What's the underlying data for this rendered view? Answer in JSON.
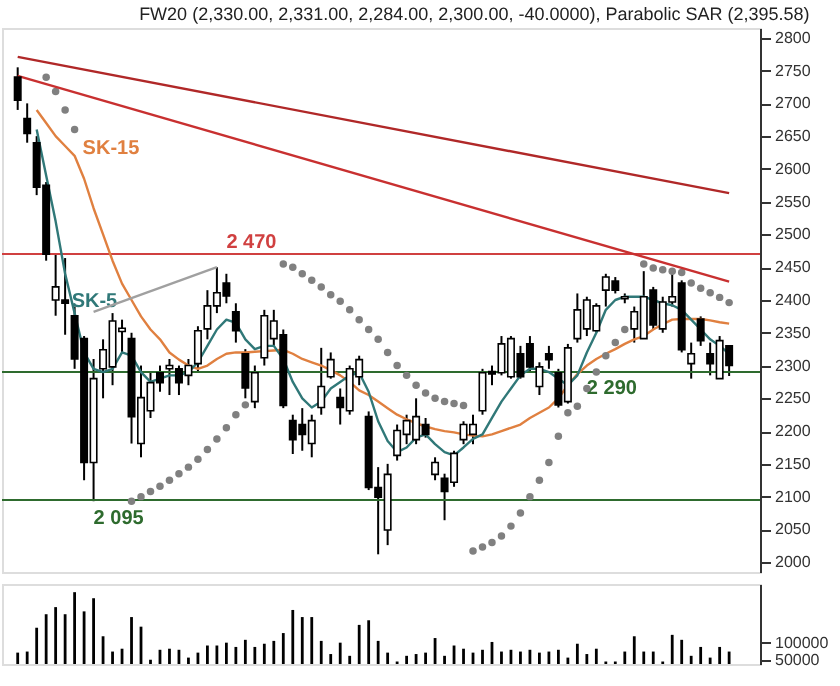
{
  "chart_data": [
    {
      "type": "candlestick",
      "title": "FW20 (2,330.00, 2,331.00, 2,284.00, 2,300.00, -40.0000), Parabolic SAR (2,395.58)",
      "categories": [
        null,
        null,
        null,
        null,
        null,
        null,
        null,
        null,
        null,
        null,
        null,
        null,
        null,
        null,
        null,
        null,
        null,
        null,
        null,
        null,
        null,
        null,
        null,
        null,
        null,
        null,
        null,
        null,
        null,
        null,
        null,
        null,
        null,
        null,
        null,
        null,
        null,
        null,
        null,
        null,
        null,
        null,
        null,
        null,
        null,
        null,
        null,
        null,
        null,
        null,
        null,
        null,
        null,
        null,
        null,
        null,
        null,
        null,
        null,
        null,
        null,
        null,
        null,
        null,
        null,
        null,
        null,
        null,
        null,
        null,
        null,
        null,
        null,
        null,
        null,
        null
      ],
      "ohlc": [
        [
          2740,
          2755,
          2690,
          2705
        ],
        [
          2677,
          2700,
          2640,
          2654
        ],
        [
          2640,
          2650,
          2560,
          2572
        ],
        [
          2575,
          2580,
          2460,
          2470
        ],
        [
          2400,
          2470,
          2376,
          2420
        ],
        [
          2400,
          2464,
          2347,
          2395
        ],
        [
          2376,
          2390,
          2295,
          2310
        ],
        [
          2341,
          2345,
          2125,
          2152
        ],
        [
          2152,
          2310,
          2093,
          2280
        ],
        [
          2295,
          2340,
          2250,
          2324
        ],
        [
          2298,
          2380,
          2270,
          2368
        ],
        [
          2352,
          2370,
          2320,
          2357
        ],
        [
          2341,
          2350,
          2181,
          2222
        ],
        [
          2181,
          2300,
          2160,
          2251
        ],
        [
          2231,
          2290,
          2220,
          2274
        ],
        [
          2289,
          2300,
          2260,
          2274
        ],
        [
          2295,
          2310,
          2255,
          2300
        ],
        [
          2295,
          2300,
          2255,
          2274
        ],
        [
          2285,
          2310,
          2270,
          2300
        ],
        [
          2303,
          2360,
          2290,
          2353
        ],
        [
          2356,
          2415,
          2340,
          2391
        ],
        [
          2391,
          2450,
          2380,
          2411
        ],
        [
          2426,
          2440,
          2395,
          2406
        ],
        [
          2382,
          2395,
          2335,
          2353
        ],
        [
          2318,
          2325,
          2250,
          2266
        ],
        [
          2245,
          2300,
          2235,
          2289
        ],
        [
          2312,
          2385,
          2300,
          2376
        ],
        [
          2341,
          2385,
          2330,
          2368
        ],
        [
          2347,
          2355,
          2235,
          2239
        ],
        [
          2216,
          2225,
          2165,
          2187
        ],
        [
          2210,
          2235,
          2170,
          2195
        ],
        [
          2181,
          2225,
          2160,
          2216
        ],
        [
          2236,
          2327,
          2225,
          2268
        ],
        [
          2283,
          2320,
          2280,
          2309
        ],
        [
          2251,
          2265,
          2210,
          2236
        ],
        [
          2231,
          2300,
          2225,
          2295
        ],
        [
          2283,
          2315,
          2270,
          2309
        ],
        [
          2222,
          2230,
          2110,
          2114
        ],
        [
          2114,
          2145,
          2012,
          2099
        ],
        [
          2049,
          2150,
          2026,
          2134
        ],
        [
          2163,
          2210,
          2155,
          2201
        ],
        [
          2195,
          2225,
          2180,
          2216
        ],
        [
          2187,
          2250,
          2180,
          2222
        ],
        [
          2210,
          2220,
          2190,
          2195
        ],
        [
          2134,
          2160,
          2125,
          2152
        ],
        [
          2128,
          2135,
          2064,
          2108
        ],
        [
          2122,
          2170,
          2115,
          2166
        ],
        [
          2187,
          2215,
          2180,
          2210
        ],
        [
          2195,
          2225,
          2180,
          2210
        ],
        [
          2231,
          2295,
          2225,
          2289
        ],
        [
          2291,
          2300,
          2270,
          2287
        ],
        [
          2289,
          2345,
          2285,
          2333
        ],
        [
          2283,
          2345,
          2280,
          2341
        ],
        [
          2318,
          2330,
          2280,
          2283
        ],
        [
          2333,
          2345,
          2290,
          2298
        ],
        [
          2268,
          2305,
          2255,
          2298
        ],
        [
          2318,
          2330,
          2295,
          2309
        ],
        [
          2289,
          2295,
          2236,
          2240
        ],
        [
          2245,
          2333,
          2242,
          2327
        ],
        [
          2341,
          2410,
          2335,
          2385
        ],
        [
          2356,
          2405,
          2345,
          2400
        ],
        [
          2353,
          2395,
          2350,
          2391
        ],
        [
          2415,
          2440,
          2390,
          2435
        ],
        [
          2429,
          2435,
          2410,
          2415
        ],
        [
          2402,
          2410,
          2395,
          2405
        ],
        [
          2356,
          2390,
          2335,
          2382
        ],
        [
          2341,
          2444,
          2341,
          2405
        ],
        [
          2415,
          2420,
          2355,
          2362
        ],
        [
          2356,
          2405,
          2350,
          2397
        ],
        [
          2397,
          2440,
          2390,
          2405
        ],
        [
          2426,
          2430,
          2320,
          2324
        ],
        [
          2303,
          2335,
          2280,
          2318
        ],
        [
          2371,
          2375,
          2330,
          2338
        ],
        [
          2318,
          2335,
          2285,
          2303
        ],
        [
          2280,
          2345,
          2280,
          2338
        ],
        [
          2330,
          2331,
          2284,
          2300
        ]
      ],
      "series": [
        {
          "name": "SK-15",
          "type": "line",
          "color": "#e08040",
          "values": [
            null,
            null,
            2690,
            2670,
            2650,
            2635,
            2620,
            2585,
            2540,
            2500,
            2460,
            2425,
            2400,
            2375,
            2355,
            2340,
            2320,
            2309,
            2300,
            2295,
            2300,
            2310,
            2318,
            2320,
            2320,
            2321,
            2322,
            2323,
            2324,
            2318,
            2310,
            2305,
            2300,
            2293,
            2285,
            2275,
            2262,
            2255,
            2245,
            2235,
            2225,
            2218,
            2212,
            2207,
            2203,
            2200,
            2198,
            2195,
            2193,
            2192,
            2195,
            2200,
            2205,
            2210,
            2220,
            2228,
            2236,
            2250,
            2270,
            2287,
            2300,
            2310,
            2318,
            2325,
            2333,
            2340,
            2345,
            2355,
            2363,
            2370,
            2371,
            2371,
            2371,
            2369,
            2366,
            2364
          ]
        },
        {
          "name": "SK-5",
          "type": "line",
          "color": "#307878",
          "values": [
            null,
            null,
            2660,
            2590,
            2520,
            2440,
            2380,
            2320,
            2295,
            2290,
            2295,
            2320,
            2315,
            2290,
            2275,
            2280,
            2285,
            2285,
            2290,
            2305,
            2330,
            2355,
            2370,
            2365,
            2340,
            2325,
            2330,
            2330,
            2310,
            2275,
            2250,
            2236,
            2245,
            2265,
            2275,
            2285,
            2289,
            2260,
            2215,
            2185,
            2168,
            2175,
            2190,
            2195,
            2180,
            2168,
            2163,
            2175,
            2188,
            2195,
            2220,
            2245,
            2265,
            2285,
            2295,
            2295,
            2290,
            2280,
            2270,
            2285,
            2320,
            2350,
            2385,
            2400,
            2405,
            2405,
            2405,
            2400,
            2395,
            2392,
            2385,
            2370,
            2355,
            2340,
            2330,
            2318
          ]
        },
        {
          "type": "scatter",
          "color": "#808080",
          "values": [
            null,
            null,
            null,
            2740,
            2718,
            2690,
            2660,
            null,
            null,
            null,
            null,
            null,
            2093,
            2100,
            2108,
            2116,
            2125,
            2135,
            2145,
            2157,
            2172,
            2188,
            2205,
            2225,
            2240,
            null,
            null,
            null,
            2455,
            2450,
            2440,
            2430,
            2420,
            2408,
            2398,
            2385,
            2370,
            2355,
            2340,
            2320,
            2300,
            2285,
            2270,
            2258,
            2250,
            2245,
            2242,
            2239,
            2017,
            2023,
            2030,
            2040,
            2055,
            2075,
            2100,
            2125,
            2152,
            2192,
            2228,
            2238,
            2265,
            2290,
            2315,
            2335,
            2355,
            2370,
            2455,
            2449,
            2446,
            2444,
            2442,
            2426,
            2418,
            2411,
            2404,
            2396
          ]
        },
        {
          "type": "line",
          "color": "#b02828",
          "values": [
            2771,
            null,
            null,
            null,
            null,
            null,
            null,
            null,
            null,
            null,
            null,
            null,
            null,
            null,
            null,
            null,
            null,
            null,
            null,
            null,
            null,
            null,
            null,
            null,
            null,
            null,
            null,
            null,
            null,
            null,
            null,
            null,
            null,
            null,
            null,
            null,
            null,
            null,
            null,
            null,
            null,
            null,
            null,
            null,
            null,
            null,
            null,
            null,
            null,
            null,
            null,
            null,
            null,
            null,
            null,
            null,
            null,
            null,
            null,
            null,
            null,
            null,
            null,
            null,
            null,
            null,
            null,
            null,
            null,
            null,
            null,
            null,
            null,
            null,
            null,
            2563
          ]
        },
        {
          "type": "line",
          "color": "#c83030",
          "values": [
            2742,
            null,
            null,
            null,
            null,
            null,
            null,
            null,
            null,
            null,
            null,
            null,
            null,
            null,
            null,
            null,
            null,
            null,
            null,
            null,
            null,
            null,
            null,
            null,
            null,
            null,
            null,
            null,
            null,
            null,
            null,
            null,
            null,
            null,
            null,
            null,
            null,
            null,
            null,
            null,
            null,
            null,
            null,
            null,
            null,
            null,
            null,
            null,
            null,
            null,
            null,
            null,
            null,
            null,
            null,
            null,
            null,
            null,
            null,
            null,
            null,
            null,
            null,
            null,
            null,
            null,
            null,
            null,
            null,
            null,
            null,
            null,
            null,
            null,
            null,
            2428
          ]
        },
        {
          "type": "line",
          "color": "#a0a0a0",
          "values": [
            null,
            null,
            null,
            null,
            null,
            null,
            null,
            null,
            2382,
            null,
            null,
            null,
            null,
            null,
            null,
            null,
            null,
            null,
            null,
            null,
            null,
            2450,
            null,
            null,
            null,
            null,
            null,
            null,
            null,
            null,
            null,
            null,
            null,
            null,
            null,
            null,
            null,
            null,
            null,
            null,
            null,
            null,
            null,
            null,
            null,
            null,
            null,
            null,
            null,
            null,
            null,
            null,
            null,
            null,
            null,
            null,
            null,
            null,
            null,
            null,
            null,
            null,
            null,
            null,
            null,
            null,
            null,
            null,
            null,
            null,
            null,
            null,
            null,
            null,
            null,
            null
          ]
        }
      ],
      "ref_lines": [
        {
          "axis": "y",
          "value": 2470,
          "label": "2 470",
          "color": "#d04040"
        },
        {
          "axis": "y",
          "value": 2290,
          "label": "2 290",
          "color": "#2e6b2e"
        },
        {
          "axis": "y",
          "value": 2095,
          "label": "2 095",
          "color": "#2e6b2e"
        }
      ],
      "ylim": [
        1985,
        2815
      ],
      "yticks": [
        2000,
        2050,
        2100,
        2150,
        2200,
        2250,
        2300,
        2350,
        2400,
        2450,
        2500,
        2550,
        2600,
        2650,
        2700,
        2750,
        2800
      ],
      "tick_labels": "y"
    },
    {
      "type": "bar",
      "categories": [
        null,
        null,
        null,
        null,
        null,
        null,
        null,
        null,
        null,
        null,
        null,
        null,
        null,
        null,
        null,
        null,
        null,
        null,
        null,
        null,
        null,
        null,
        null,
        null,
        null,
        null,
        null,
        null,
        null,
        null,
        null,
        null,
        null,
        null,
        null,
        null,
        null,
        null,
        null,
        null,
        null,
        null,
        null,
        null,
        null,
        null,
        null,
        null,
        null,
        null,
        null,
        null,
        null,
        null,
        null,
        null,
        null,
        null,
        null,
        null,
        null,
        null,
        null,
        null,
        null,
        null,
        null,
        null,
        null,
        null,
        null,
        null,
        null,
        null,
        null,
        null
      ],
      "color": "#000000",
      "values": [
        72000,
        75000,
        142000,
        180000,
        200000,
        180000,
        242000,
        188000,
        225000,
        118000,
        75000,
        83000,
        172000,
        145000,
        52000,
        80000,
        83000,
        80000,
        58000,
        72000,
        92000,
        92000,
        100000,
        88000,
        108000,
        88000,
        97000,
        105000,
        127000,
        192000,
        172000,
        172000,
        105000,
        68000,
        100000,
        63000,
        150000,
        163000,
        105000,
        72000,
        47000,
        63000,
        68000,
        72000,
        113000,
        63000,
        92000,
        83000,
        72000,
        80000,
        102000,
        75000,
        80000,
        75000,
        80000,
        72000,
        75000,
        80000,
        58000,
        97000,
        68000,
        83000,
        47000,
        47000,
        75000,
        118000,
        75000,
        75000,
        47000,
        122000,
        108000,
        63000,
        88000,
        58000,
        88000,
        75000
      ],
      "ylim": [
        40000,
        265000
      ],
      "yticks": [
        50000,
        100000
      ],
      "tick_labels": "y"
    }
  ]
}
